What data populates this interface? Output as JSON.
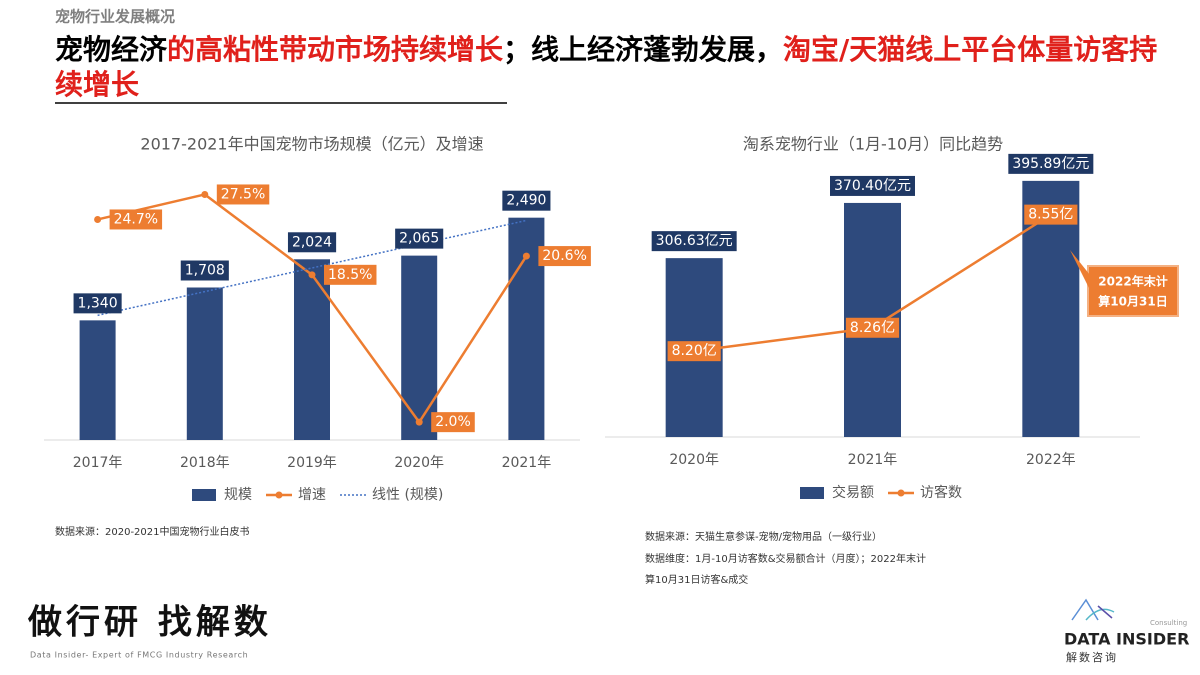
{
  "header": {
    "section": "宠物行业发展概况",
    "headline": [
      {
        "text": "宠物经济",
        "color": "#000000"
      },
      {
        "text": "的高粘性带动市场持续增长",
        "color": "#e0201b"
      },
      {
        "text": "；线上经济蓬勃发展，",
        "color": "#000000"
      },
      {
        "text": "淘宝/天猫线上平台体量访客持续增长",
        "color": "#e0201b"
      }
    ]
  },
  "chart_data": [
    {
      "type": "combo",
      "title": "2017-2021年中国宠物市场规模（亿元）及增速",
      "categories": [
        "2017年",
        "2018年",
        "2019年",
        "2020年",
        "2021年"
      ],
      "ylim": [
        0,
        2800
      ],
      "y2lim": [
        0,
        28
      ],
      "series": [
        {
          "name": "规模",
          "type": "bar",
          "color": "#2e4a7d",
          "values": [
            1340,
            1708,
            2024,
            2065,
            2490
          ],
          "value_labels": [
            "1,340",
            "1,708",
            "2,024",
            "2,065",
            "2,490"
          ]
        },
        {
          "name": "增速",
          "type": "line",
          "axis": "y2",
          "color": "#ed7d31",
          "markers": true,
          "values": [
            24.7,
            27.5,
            18.5,
            2.0,
            20.6
          ],
          "value_labels": [
            "24.7%",
            "27.5%",
            "18.5%",
            "2.0%",
            "20.6%"
          ]
        },
        {
          "name": "线性 (规模)",
          "type": "line",
          "color": "#4472c4",
          "line_style": "dotted",
          "values": [
            1396,
            1662,
            1927,
            2193,
            2459
          ]
        }
      ],
      "source": "数据来源：2020-2021中国宠物行业白皮书"
    },
    {
      "type": "combo",
      "title": "淘系宠物行业（1月-10月）同比趋势",
      "categories": [
        "2020年",
        "2021年",
        "2022年"
      ],
      "ylim": [
        100,
        420
      ],
      "y2lim": [
        7.98,
        8.69
      ],
      "series": [
        {
          "name": "交易额",
          "type": "bar",
          "color": "#2e4a7d",
          "values": [
            306.63,
            370.4,
            395.89
          ],
          "value_labels": [
            "306.63亿元",
            "370.40亿元",
            "395.89亿元"
          ]
        },
        {
          "name": "访客数",
          "type": "line",
          "axis": "y2",
          "color": "#ed7d31",
          "markers": false,
          "values": [
            8.2,
            8.26,
            8.55
          ],
          "value_labels": [
            "8.20亿",
            "8.26亿",
            "8.55亿"
          ]
        }
      ],
      "annotation": [
        "2022年末计",
        "算10月31日"
      ],
      "source": [
        "数据来源：天猫生意参谋-宠物/宠物用品（一级行业）",
        "数据维度：1月-10月访客数&交易额合计（月度）；2022年末计",
        "算10月31日访客&成交"
      ]
    }
  ],
  "footer": {
    "slogan": "做行研 找解数",
    "tagline": "Data Insider- Expert of FMCG Industry Research",
    "brand": "DATA INSIDER",
    "brand_sub": "Consulting",
    "brand_cn": "解数咨询"
  }
}
